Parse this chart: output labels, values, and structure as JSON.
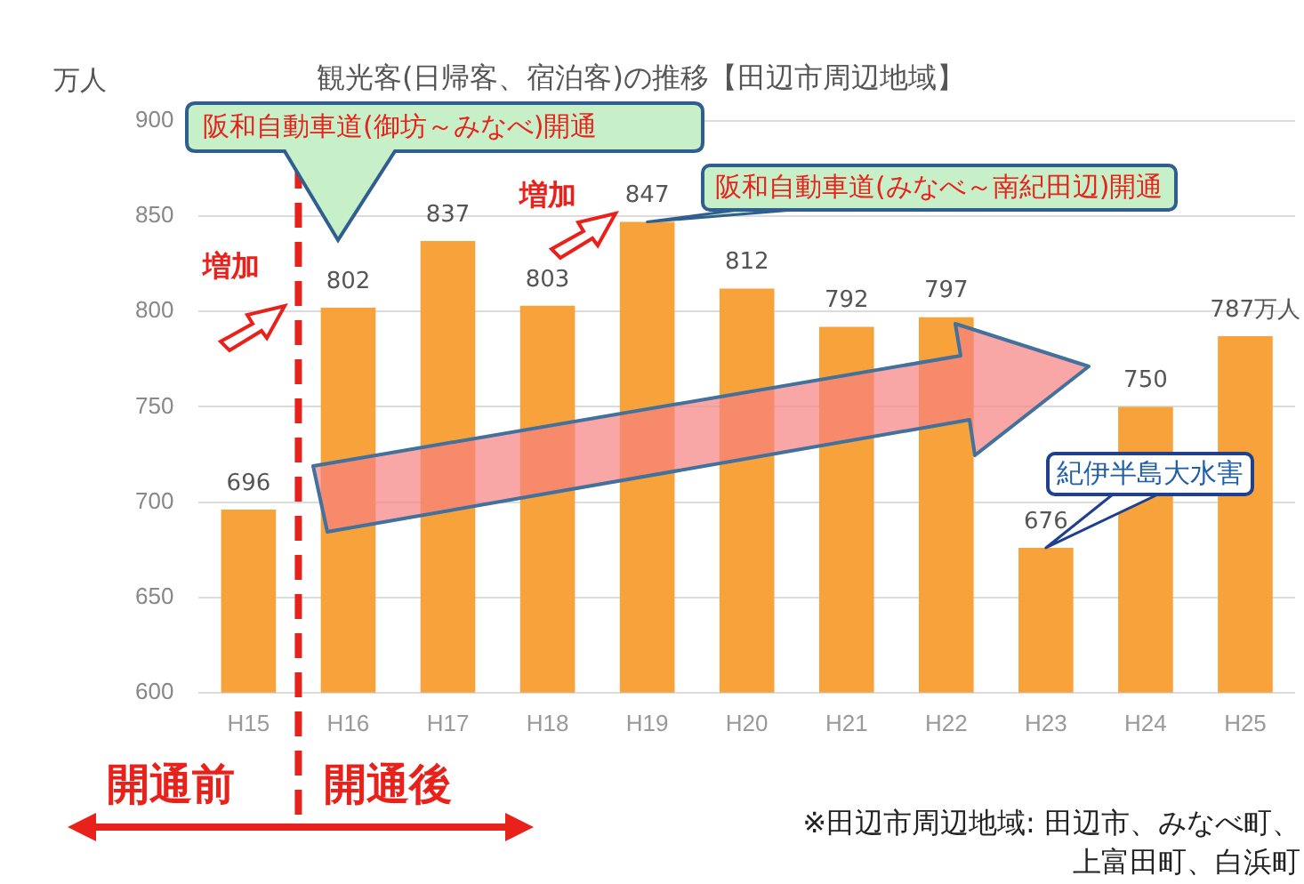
{
  "chart_data": {
    "type": "bar",
    "title": "観光客(日帰客、宿泊客)の推移【田辺市周辺地域】",
    "ylabel": "万人",
    "categories": [
      "H15",
      "H16",
      "H17",
      "H18",
      "H19",
      "H20",
      "H21",
      "H22",
      "H23",
      "H24",
      "H25"
    ],
    "values": [
      696,
      802,
      837,
      803,
      847,
      812,
      792,
      797,
      676,
      750,
      787
    ],
    "value_labels": [
      "696",
      "802",
      "837",
      "803",
      "847",
      "812",
      "792",
      "797",
      "676",
      "750",
      "787万人"
    ],
    "color": "#f7a23a",
    "ylim": [
      600,
      900
    ],
    "yticks": [
      600,
      650,
      700,
      750,
      800,
      850,
      900
    ],
    "grid": "y",
    "legend": false,
    "ref_lines": [
      {
        "axis": "x",
        "value": "H16",
        "color": "#e8211b",
        "line_style": "dashed"
      }
    ],
    "annotations": [
      "阪和自動車道(御坊～みなべ)開通",
      {
        "text": "阪和自動車道(みなべ～南紀田辺)開通",
        "x": "H19",
        "y": 847
      },
      "増加",
      "増加",
      {
        "text": "紀伊半島大水害",
        "x": "H23",
        "y": 676
      },
      "開通前",
      "開通後",
      "※田辺市周辺地域: 田辺市、みなべ町、上富田町、白浜町"
    ]
  }
}
